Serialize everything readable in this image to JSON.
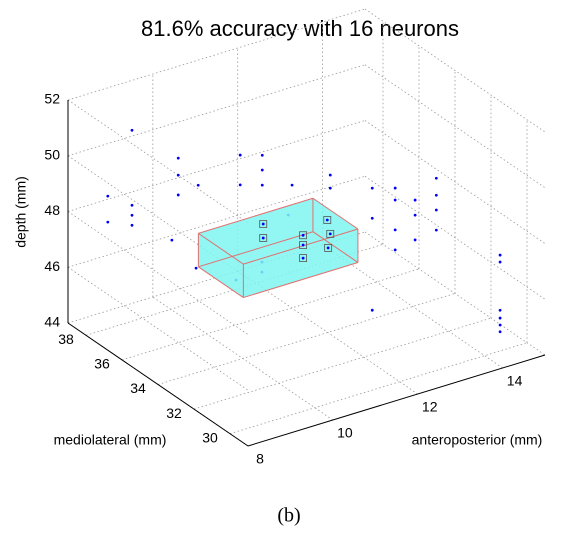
{
  "chart_data": {
    "type": "scatter3d",
    "title": "81.6% accuracy with 16 neurons",
    "xlabel": "anteroposterior (mm)",
    "ylabel": "mediolateral (mm)",
    "zlabel": "depth (mm)",
    "caption": "(b)",
    "xlim": [
      8,
      15
    ],
    "ylim": [
      29,
      39
    ],
    "zlim": [
      44,
      52
    ],
    "xticks": [
      8,
      10,
      12,
      14
    ],
    "yticks": [
      30,
      32,
      34,
      36,
      38
    ],
    "zticks": [
      44,
      46,
      48,
      50,
      52
    ],
    "grid": true,
    "points": {
      "color": "#0000ff",
      "x": [
        8.09,
        8.09,
        8.66,
        8.66,
        8.66,
        8.66,
        9.75,
        9.75,
        9.75,
        9.6,
        10.22,
        10.17,
        11.21,
        11.21,
        11.73,
        11.73,
        11.73,
        11.16,
        11.07,
        12.06,
        12.06,
        9.84,
        10.45,
        10.45,
        13.05,
        13.05,
        13.05,
        13.59,
        13.59,
        13.59,
        13.59,
        14.06,
        14.06,
        14.06,
        14.56,
        14.56,
        14.56,
        14.56,
        14.79,
        14.79,
        14.79,
        14.79,
        14.79,
        14.79
      ],
      "y": [
        37,
        37,
        37,
        37,
        37,
        37,
        37,
        37,
        37,
        37,
        37,
        37,
        37,
        37,
        37,
        37,
        37,
        34,
        34,
        34,
        34,
        34,
        34,
        34,
        34,
        34,
        34,
        34,
        34,
        34,
        34,
        34,
        34,
        34,
        34,
        34,
        34,
        34,
        31,
        31,
        31,
        31,
        31,
        31
      ],
      "z": [
        49.39,
        48.46,
        48.8,
        48.44,
        48.08,
        51.49,
        49.98,
        49.37,
        48.66,
        47.11,
        48.79,
        45.84,
        49.41,
        48.34,
        49.16,
        48.63,
        48.09,
        49.68,
        48.65,
        49.62,
        49.15,
        46.89,
        47.25,
        46.89,
        48.69,
        47.61,
        44.31,
        48.44,
        48.01,
        46.94,
        46.22,
        47.79,
        47.25,
        46.36,
        48.34,
        47.73,
        47.2,
        46.48,
        46.8,
        46.55,
        44.82,
        44.54,
        44.29,
        44.05
      ]
    },
    "selected": {
      "color": "#0000ff",
      "marker_color": "#555555",
      "x": [
        10.48,
        10.48,
        11.42,
        11.42,
        11.42,
        11.99,
        12.01,
        12.06
      ],
      "y": [
        34,
        34,
        34,
        34,
        34,
        34,
        34,
        34
      ],
      "z": [
        48.6,
        48.1,
        47.76,
        47.41,
        46.94,
        48.04,
        47.03,
        47.51
      ]
    },
    "box": {
      "x": [
        9.8,
        12.5
      ],
      "y": [
        33.5,
        36
      ],
      "z": [
        46.5,
        47.7
      ],
      "fill": "#7ff5f0",
      "edge": "#e07070"
    }
  }
}
